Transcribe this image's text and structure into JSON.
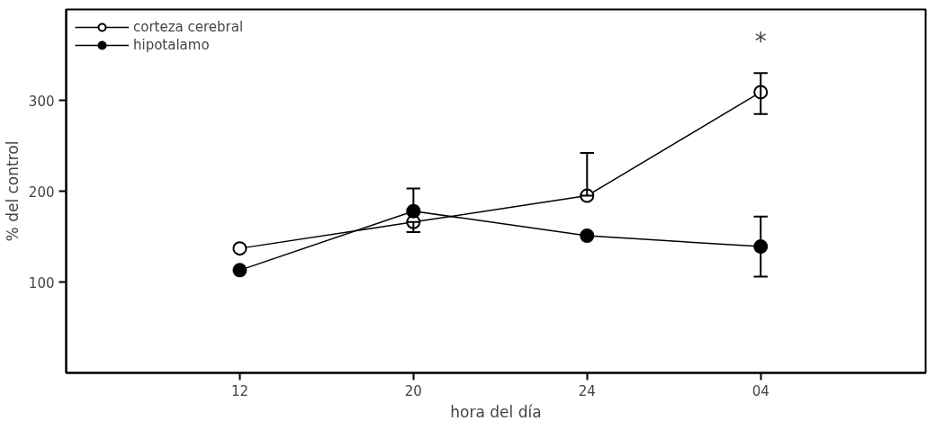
{
  "chart_data": {
    "type": "line",
    "xlabel": "hora del día",
    "ylabel": "% del control",
    "categories": [
      "12",
      "20",
      "24",
      "04"
    ],
    "series": [
      {
        "name": "corteza cerebral",
        "color": "#ffffff",
        "values": [
          137,
          166,
          195,
          309
        ],
        "errors": [
          null,
          [
            155,
            166
          ],
          [
            195,
            242
          ],
          [
            285,
            330
          ]
        ]
      },
      {
        "name": "hipotalamo",
        "color": "#000000",
        "values": [
          113,
          178,
          151,
          139
        ],
        "errors": [
          null,
          [
            178,
            203
          ],
          null,
          [
            106,
            172
          ]
        ]
      }
    ],
    "ylim": [
      0,
      400
    ],
    "yticks": [
      100,
      200,
      300
    ],
    "grid": false,
    "legend": "top left",
    "marker": "circle",
    "line_style": "solid",
    "annotations": [
      "*"
    ]
  }
}
